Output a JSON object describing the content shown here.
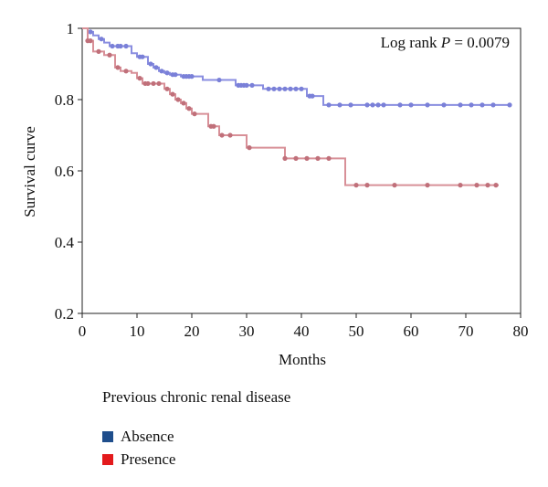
{
  "chart_data": {
    "type": "line",
    "subtype": "kaplan-meier",
    "xlabel": "Months",
    "ylabel": "Survival curve",
    "xlim": [
      0,
      80
    ],
    "ylim": [
      0.2,
      1.0
    ],
    "xticks": [
      0,
      10,
      20,
      30,
      40,
      50,
      60,
      70,
      80
    ],
    "yticks": [
      0.2,
      0.4,
      0.6,
      0.8,
      1
    ],
    "ytick_labels": [
      "0.2",
      "0.4",
      "0.6",
      "0.8",
      "1"
    ],
    "grid": false,
    "annotation": {
      "prefix": "Log rank ",
      "stat": "P",
      "suffix": " = 0.0079"
    },
    "legend": {
      "title": "Previous chronic renal disease",
      "placement": "below"
    },
    "series": [
      {
        "name": "Absence",
        "legend_color": "#1f4e8c",
        "line_color": "#8a8ee0",
        "marker_color": "#7a80d8",
        "steps": [
          [
            0,
            1.0
          ],
          [
            1,
            0.99
          ],
          [
            2,
            0.98
          ],
          [
            3,
            0.97
          ],
          [
            4,
            0.96
          ],
          [
            5,
            0.95
          ],
          [
            9,
            0.93
          ],
          [
            10,
            0.92
          ],
          [
            12,
            0.9
          ],
          [
            13,
            0.89
          ],
          [
            14,
            0.88
          ],
          [
            15,
            0.875
          ],
          [
            16,
            0.87
          ],
          [
            18,
            0.865
          ],
          [
            22,
            0.855
          ],
          [
            28,
            0.84
          ],
          [
            33,
            0.83
          ],
          [
            41,
            0.81
          ],
          [
            44,
            0.785
          ],
          [
            78,
            0.785
          ]
        ],
        "censored": [
          [
            1.5,
            0.99
          ],
          [
            3.5,
            0.97
          ],
          [
            5.5,
            0.95
          ],
          [
            6.5,
            0.95
          ],
          [
            7,
            0.95
          ],
          [
            8,
            0.95
          ],
          [
            10.5,
            0.92
          ],
          [
            11,
            0.92
          ],
          [
            12.5,
            0.9
          ],
          [
            13.5,
            0.89
          ],
          [
            14.5,
            0.88
          ],
          [
            15.5,
            0.875
          ],
          [
            16.5,
            0.87
          ],
          [
            17,
            0.87
          ],
          [
            18.5,
            0.865
          ],
          [
            19,
            0.865
          ],
          [
            19.5,
            0.865
          ],
          [
            20,
            0.865
          ],
          [
            25,
            0.855
          ],
          [
            28.5,
            0.84
          ],
          [
            29,
            0.84
          ],
          [
            29.5,
            0.84
          ],
          [
            30,
            0.84
          ],
          [
            31,
            0.84
          ],
          [
            34,
            0.83
          ],
          [
            35,
            0.83
          ],
          [
            36,
            0.83
          ],
          [
            37,
            0.83
          ],
          [
            38,
            0.83
          ],
          [
            39,
            0.83
          ],
          [
            40,
            0.83
          ],
          [
            41.5,
            0.81
          ],
          [
            42,
            0.81
          ],
          [
            45,
            0.785
          ],
          [
            47,
            0.785
          ],
          [
            49,
            0.785
          ],
          [
            52,
            0.785
          ],
          [
            53,
            0.785
          ],
          [
            54,
            0.785
          ],
          [
            55,
            0.785
          ],
          [
            58,
            0.785
          ],
          [
            60,
            0.785
          ],
          [
            63,
            0.785
          ],
          [
            66,
            0.785
          ],
          [
            69,
            0.785
          ],
          [
            71,
            0.785
          ],
          [
            73,
            0.785
          ],
          [
            75,
            0.785
          ],
          [
            78,
            0.785
          ]
        ]
      },
      {
        "name": "Presence",
        "legend_color": "#e31a1c",
        "line_color": "#d89098",
        "marker_color": "#c0707a",
        "steps": [
          [
            0,
            1.0
          ],
          [
            1,
            0.965
          ],
          [
            2,
            0.935
          ],
          [
            4,
            0.925
          ],
          [
            6,
            0.89
          ],
          [
            7,
            0.88
          ],
          [
            9,
            0.875
          ],
          [
            10,
            0.86
          ],
          [
            11,
            0.845
          ],
          [
            15,
            0.83
          ],
          [
            16,
            0.815
          ],
          [
            17,
            0.8
          ],
          [
            18,
            0.79
          ],
          [
            19,
            0.775
          ],
          [
            20,
            0.76
          ],
          [
            23,
            0.725
          ],
          [
            25,
            0.7
          ],
          [
            30,
            0.665
          ],
          [
            37,
            0.635
          ],
          [
            48,
            0.56
          ],
          [
            76,
            0.56
          ]
        ],
        "censored": [
          [
            1,
            0.965
          ],
          [
            1.5,
            0.965
          ],
          [
            3,
            0.935
          ],
          [
            5,
            0.925
          ],
          [
            6.5,
            0.89
          ],
          [
            8,
            0.88
          ],
          [
            10.5,
            0.86
          ],
          [
            11.5,
            0.845
          ],
          [
            12,
            0.845
          ],
          [
            13,
            0.845
          ],
          [
            14,
            0.845
          ],
          [
            15.5,
            0.83
          ],
          [
            16.5,
            0.815
          ],
          [
            17.5,
            0.8
          ],
          [
            18.5,
            0.79
          ],
          [
            19.5,
            0.775
          ],
          [
            20.5,
            0.76
          ],
          [
            23.5,
            0.725
          ],
          [
            24,
            0.725
          ],
          [
            25.5,
            0.7
          ],
          [
            27,
            0.7
          ],
          [
            30.5,
            0.665
          ],
          [
            37,
            0.635
          ],
          [
            39,
            0.635
          ],
          [
            41,
            0.635
          ],
          [
            43,
            0.635
          ],
          [
            45,
            0.635
          ],
          [
            50,
            0.56
          ],
          [
            52,
            0.56
          ],
          [
            57,
            0.56
          ],
          [
            63,
            0.56
          ],
          [
            69,
            0.56
          ],
          [
            72,
            0.56
          ],
          [
            74,
            0.56
          ],
          [
            75.5,
            0.56
          ]
        ]
      }
    ]
  }
}
